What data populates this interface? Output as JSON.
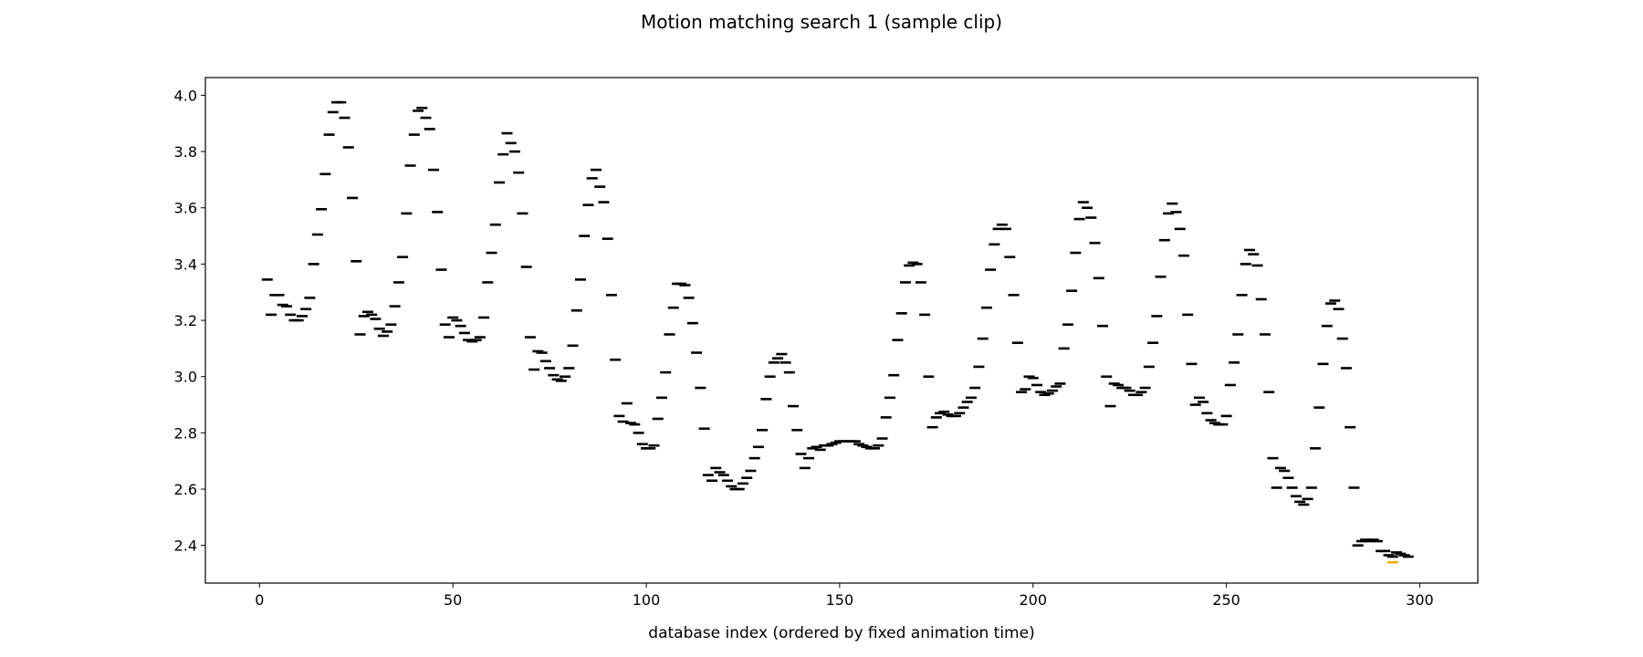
{
  "chart_data": {
    "type": "scatter",
    "title": "Motion matching search 1 (sample clip)",
    "x_label": "database index (ordered by fixed animation time)",
    "xlim": [
      -14,
      315
    ],
    "ylim": [
      2.266,
      4.063
    ],
    "xticks": [
      0,
      50,
      100,
      150,
      200,
      250,
      300
    ],
    "yticks": [
      2.4,
      2.6,
      2.8,
      {
        "value": 3,
        "label": "3.0"
      },
      3.2,
      3.4,
      3.6,
      3.8,
      {
        "value": 4,
        "label": "4.0"
      }
    ],
    "grid": false,
    "series": [
      {
        "color": "#000000",
        "x": [
          2,
          3,
          4,
          5,
          6,
          7,
          8,
          9,
          10,
          11,
          12,
          13,
          14,
          15,
          16,
          17,
          18,
          19,
          20,
          21,
          22,
          23,
          24,
          25,
          26,
          27,
          28,
          29,
          30,
          31,
          32,
          33,
          34,
          35,
          36,
          37,
          38,
          39,
          40,
          41,
          42,
          43,
          44,
          45,
          46,
          47,
          48,
          49,
          50,
          51,
          52,
          53,
          54,
          55,
          56,
          57,
          58,
          59,
          60,
          61,
          62,
          63,
          64,
          65,
          66,
          67,
          68,
          69,
          70,
          71,
          72,
          73,
          74,
          75,
          76,
          77,
          78,
          79,
          80,
          81,
          82,
          83,
          84,
          85,
          86,
          87,
          88,
          89,
          90,
          91,
          92,
          93,
          94,
          95,
          96,
          97,
          98,
          99,
          100,
          101,
          102,
          103,
          104,
          105,
          106,
          107,
          108,
          109,
          110,
          111,
          112,
          113,
          114,
          115,
          116,
          117,
          118,
          119,
          120,
          121,
          122,
          123,
          124,
          125,
          126,
          127,
          128,
          129,
          130,
          131,
          132,
          133,
          134,
          135,
          136,
          137,
          138,
          139,
          140,
          141,
          142,
          143,
          144,
          145,
          146,
          147,
          148,
          149,
          150,
          151,
          152,
          153,
          154,
          155,
          156,
          157,
          158,
          159,
          160,
          161,
          162,
          163,
          164,
          165,
          166,
          167,
          168,
          169,
          170,
          171,
          172,
          173,
          174,
          175,
          176,
          177,
          178,
          179,
          180,
          181,
          182,
          183,
          184,
          185,
          186,
          187,
          188,
          189,
          190,
          191,
          192,
          193,
          194,
          195,
          196,
          197,
          198,
          199,
          200,
          201,
          202,
          203,
          204,
          205,
          206,
          207,
          208,
          209,
          210,
          211,
          212,
          213,
          214,
          215,
          216,
          217,
          218,
          219,
          220,
          221,
          222,
          223,
          224,
          225,
          226,
          227,
          228,
          229,
          230,
          231,
          232,
          233,
          234,
          235,
          236,
          237,
          238,
          239,
          240,
          241,
          242,
          243,
          244,
          245,
          246,
          247,
          248,
          249,
          250,
          251,
          252,
          253,
          254,
          255,
          256,
          257,
          258,
          259,
          260,
          261,
          262,
          263,
          264,
          265,
          266,
          267,
          268,
          269,
          270,
          271,
          272,
          273,
          274,
          275,
          276,
          277,
          278,
          279,
          280,
          281,
          282,
          283,
          284,
          285,
          286,
          287,
          288,
          289,
          290,
          291,
          292,
          293,
          294,
          295,
          296,
          297
        ],
        "values": [
          3.345,
          3.22,
          3.29,
          3.29,
          3.255,
          3.25,
          3.22,
          3.2,
          3.2,
          3.215,
          3.24,
          3.28,
          3.4,
          3.505,
          3.595,
          3.72,
          3.86,
          3.94,
          3.975,
          3.975,
          3.92,
          3.815,
          3.635,
          3.41,
          3.15,
          3.215,
          3.23,
          3.22,
          3.205,
          3.17,
          3.145,
          3.16,
          3.185,
          3.25,
          3.335,
          3.425,
          3.58,
          3.75,
          3.86,
          3.945,
          3.955,
          3.92,
          3.88,
          3.735,
          3.585,
          3.38,
          3.185,
          3.14,
          3.21,
          3.2,
          3.18,
          3.155,
          3.13,
          3.125,
          3.13,
          3.14,
          3.21,
          3.335,
          3.44,
          3.54,
          3.69,
          3.79,
          3.865,
          3.83,
          3.8,
          3.725,
          3.58,
          3.39,
          3.14,
          3.025,
          3.09,
          3.085,
          3.055,
          3.03,
          3.005,
          2.99,
          2.985,
          3.0,
          3.03,
          3.11,
          3.235,
          3.345,
          3.5,
          3.61,
          3.705,
          3.735,
          3.675,
          3.62,
          3.49,
          3.29,
          3.06,
          2.86,
          2.84,
          2.905,
          2.835,
          2.83,
          2.8,
          2.76,
          2.745,
          2.745,
          2.755,
          2.85,
          2.925,
          3.015,
          3.15,
          3.245,
          3.33,
          3.33,
          3.325,
          3.28,
          3.19,
          3.085,
          2.96,
          2.815,
          2.65,
          2.63,
          2.675,
          2.66,
          2.65,
          2.63,
          2.61,
          2.6,
          2.6,
          2.62,
          2.64,
          2.665,
          2.71,
          2.75,
          2.81,
          2.92,
          3.0,
          3.05,
          3.065,
          3.08,
          3.05,
          3.015,
          2.895,
          2.81,
          2.725,
          2.675,
          2.71,
          2.745,
          2.75,
          2.74,
          2.755,
          2.755,
          2.76,
          2.765,
          2.77,
          2.77,
          2.77,
          2.77,
          2.77,
          2.76,
          2.755,
          2.75,
          2.745,
          2.745,
          2.755,
          2.78,
          2.855,
          2.925,
          3.005,
          3.13,
          3.225,
          3.335,
          3.395,
          3.405,
          3.4,
          3.335,
          3.22,
          3.0,
          2.82,
          2.855,
          2.87,
          2.875,
          2.865,
          2.86,
          2.86,
          2.87,
          2.89,
          2.91,
          2.925,
          2.96,
          3.035,
          3.135,
          3.245,
          3.38,
          3.47,
          3.525,
          3.54,
          3.525,
          3.425,
          3.29,
          3.12,
          2.945,
          2.955,
          3.0,
          2.995,
          2.97,
          2.945,
          2.935,
          2.94,
          2.95,
          2.965,
          2.975,
          3.1,
          3.185,
          3.305,
          3.44,
          3.56,
          3.62,
          3.6,
          3.565,
          3.475,
          3.35,
          3.18,
          3.0,
          2.895,
          2.975,
          2.97,
          2.96,
          2.96,
          2.95,
          2.935,
          2.935,
          2.945,
          2.96,
          3.035,
          3.12,
          3.215,
          3.355,
          3.485,
          3.58,
          3.615,
          3.585,
          3.525,
          3.43,
          3.22,
          3.045,
          2.9,
          2.925,
          2.91,
          2.87,
          2.845,
          2.835,
          2.83,
          2.83,
          2.86,
          2.97,
          3.05,
          3.15,
          3.29,
          3.4,
          3.45,
          3.435,
          3.395,
          3.275,
          3.15,
          2.945,
          2.71,
          2.605,
          2.675,
          2.665,
          2.64,
          2.605,
          2.575,
          2.555,
          2.545,
          2.565,
          2.605,
          2.745,
          2.89,
          3.045,
          3.18,
          3.26,
          3.27,
          3.24,
          3.135,
          3.03,
          2.82,
          2.605,
          2.4,
          2.415,
          2.42,
          2.415,
          2.42,
          2.415,
          2.38,
          2.38,
          2.365,
          2.36,
          2.375,
          2.37,
          2.365,
          2.36
        ]
      },
      {
        "color": "#f0b000",
        "x": [
          293
        ],
        "values": [
          2.34
        ]
      }
    ]
  }
}
